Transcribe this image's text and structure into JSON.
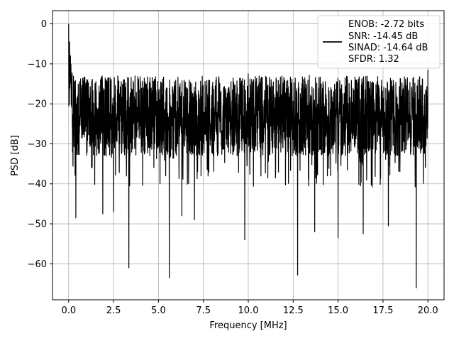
{
  "chart_data": {
    "type": "line",
    "xlabel": "Frequency [MHz]",
    "ylabel": "PSD [dB]",
    "xlim": [
      -0.9,
      20.9
    ],
    "ylim": [
      -69,
      3.3
    ],
    "xticks": [
      0.0,
      2.5,
      5.0,
      7.5,
      10.0,
      12.5,
      15.0,
      17.5,
      20.0
    ],
    "xtick_labels": [
      "0.0",
      "2.5",
      "5.0",
      "7.5",
      "10.0",
      "12.5",
      "15.0",
      "17.5",
      "20.0"
    ],
    "yticks": [
      0,
      -10,
      -20,
      -30,
      -40,
      -50,
      -60
    ],
    "ytick_labels": [
      "0",
      "−10",
      "−20",
      "−30",
      "−40",
      "−50",
      "−60"
    ],
    "grid": true,
    "legend_position": "top-right",
    "legend_lines": [
      "ENOB: -2.72 bits",
      "SNR: -14.45 dB",
      "SINAD: -14.64 dB",
      "SFDR: 1.32"
    ],
    "line_color": "#000000",
    "series": [
      {
        "noise_floor_db": [
          -26,
          -22
        ],
        "noise_range_db": [
          -33,
          -13
        ],
        "x_range": [
          0.0,
          20.0
        ],
        "peaks": [
          {
            "x": 0.0,
            "y": 0.0
          },
          {
            "x": 0.05,
            "y": -4.5
          },
          {
            "x": 0.1,
            "y": -8
          },
          {
            "x": 10.0,
            "y": -12.5
          },
          {
            "x": 13.4,
            "y": -12.9
          },
          {
            "x": 20.0,
            "y": -11.5
          }
        ],
        "dips": [
          {
            "x": 0.4,
            "y": -48.5
          },
          {
            "x": 3.35,
            "y": -61.0
          },
          {
            "x": 5.6,
            "y": -63.5
          },
          {
            "x": 12.75,
            "y": -62.8
          },
          {
            "x": 19.35,
            "y": -66.0
          },
          {
            "x": 9.8,
            "y": -54.0
          },
          {
            "x": 15.0,
            "y": -53.5
          },
          {
            "x": 16.4,
            "y": -52.5
          },
          {
            "x": 13.7,
            "y": -52.0
          },
          {
            "x": 17.8,
            "y": -50.5
          },
          {
            "x": 2.5,
            "y": -47.0
          },
          {
            "x": 1.9,
            "y": -47.5
          },
          {
            "x": 6.3,
            "y": -48.0
          },
          {
            "x": 7.0,
            "y": -49.0
          }
        ]
      }
    ]
  }
}
